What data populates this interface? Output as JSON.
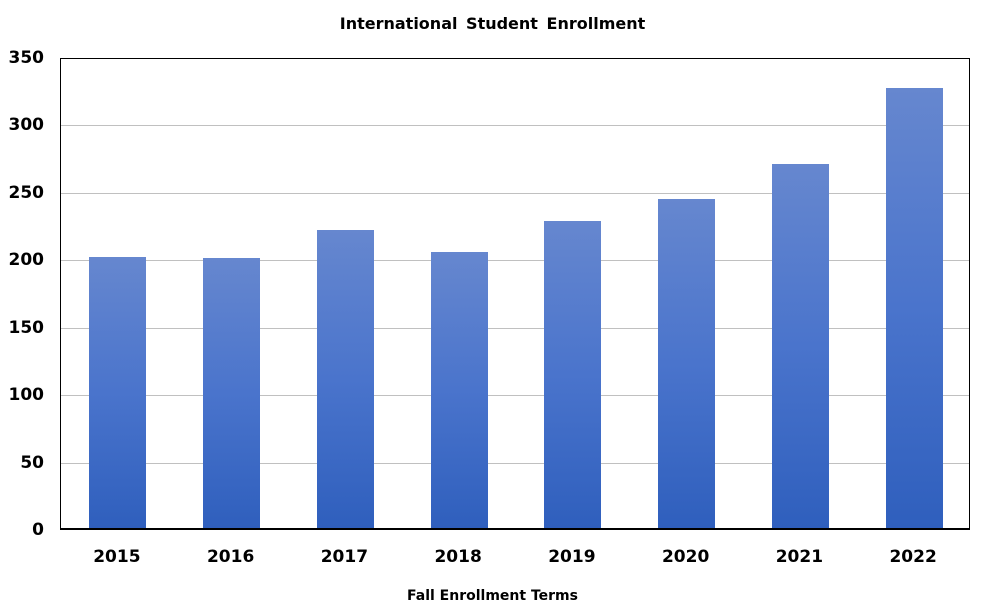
{
  "chart_data": {
    "type": "bar",
    "title": "International Student Enrollment",
    "xlabel": "Fall Enrollment Terms",
    "ylabel": "",
    "categories": [
      "2015",
      "2016",
      "2017",
      "2018",
      "2019",
      "2020",
      "2021",
      "2022"
    ],
    "values": [
      201,
      200,
      221,
      205,
      228,
      244,
      270,
      326
    ],
    "ylim": [
      0,
      350
    ],
    "yticks": [
      "0",
      "50",
      "100",
      "150",
      "200",
      "250",
      "300",
      "350"
    ],
    "grid": true,
    "legend": null,
    "bar_color_top": "#6687cf",
    "bar_color_bottom": "#2f5fbd"
  }
}
